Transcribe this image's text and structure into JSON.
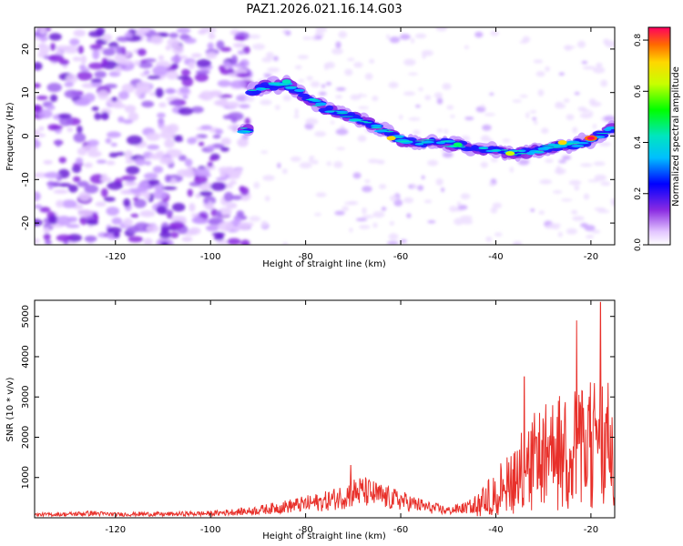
{
  "title": "PAZ1.2026.021.16.14.G03",
  "colors": {
    "snr_line": "#e8302a",
    "frame": "#000000"
  },
  "chart_data": [
    {
      "type": "heatmap",
      "xlabel": "Height of straight line (km)",
      "ylabel": "Frequency (Hz)",
      "xlim": [
        -137,
        -15
      ],
      "ylim": [
        -25,
        25
      ],
      "xticks": [
        -120,
        -100,
        -80,
        -60,
        -40,
        -20
      ],
      "yticks": [
        -20,
        -10,
        0,
        10,
        20
      ],
      "colorbar": {
        "label": "Normalized spectral amplitude",
        "range": [
          0,
          0.85
        ],
        "ticks": [
          0,
          0.2,
          0.4,
          0.6,
          0.8
        ]
      },
      "ridge": {
        "description_points_height_km": [
          -92,
          -88,
          -84,
          -80,
          -76,
          -72,
          -68,
          -64,
          -60,
          -56,
          -52,
          -48,
          -44,
          -40,
          -36,
          -32,
          -28,
          -24,
          -20,
          -16
        ],
        "frequency_hz": [
          10,
          11.5,
          12,
          9,
          6.5,
          5,
          3.5,
          1.5,
          -1,
          -1.5,
          -1.5,
          -2,
          -3,
          -3.5,
          -4,
          -3.5,
          -2.5,
          -2,
          -1,
          1.5
        ],
        "peak": {
          "height_km": -20,
          "frequency_hz": -0.5,
          "amplitude": 0.85
        }
      }
    },
    {
      "type": "line",
      "xlabel": "Height of straight line (km)",
      "ylabel": "SNR (10 * v/v)",
      "xlim": [
        -137,
        -15
      ],
      "ylim": [
        0,
        5400
      ],
      "xticks": [
        -120,
        -100,
        -80,
        -60,
        -40,
        -20
      ],
      "yticks": [
        1000,
        2000,
        3000,
        4000,
        5000
      ],
      "series": [
        {
          "name": "SNR",
          "x": [
            -137,
            -130,
            -125,
            -120,
            -115,
            -110,
            -105,
            -100,
            -96,
            -92,
            -88,
            -84,
            -80,
            -76,
            -72,
            -70,
            -68,
            -66,
            -64,
            -62,
            -60,
            -58,
            -56,
            -54,
            -52,
            -50,
            -48,
            -46,
            -44,
            -42,
            -40,
            -38,
            -36,
            -34,
            -32,
            -30,
            -28,
            -26,
            -24,
            -22,
            -20,
            -18,
            -16,
            -15
          ],
          "y": [
            120,
            140,
            180,
            130,
            150,
            140,
            160,
            170,
            220,
            260,
            350,
            450,
            550,
            650,
            850,
            1000,
            1050,
            950,
            850,
            750,
            700,
            580,
            500,
            400,
            350,
            280,
            350,
            400,
            600,
            900,
            1200,
            1600,
            2000,
            2300,
            2600,
            2800,
            3000,
            3200,
            3400,
            3300,
            3500,
            3700,
            3300,
            3000
          ]
        }
      ],
      "annotated_maxima": [
        {
          "x": -70.5,
          "y": 1300
        },
        {
          "x": -34,
          "y": 3500
        },
        {
          "x": -23,
          "y": 4900
        },
        {
          "x": -18,
          "y": 5350
        }
      ]
    }
  ]
}
